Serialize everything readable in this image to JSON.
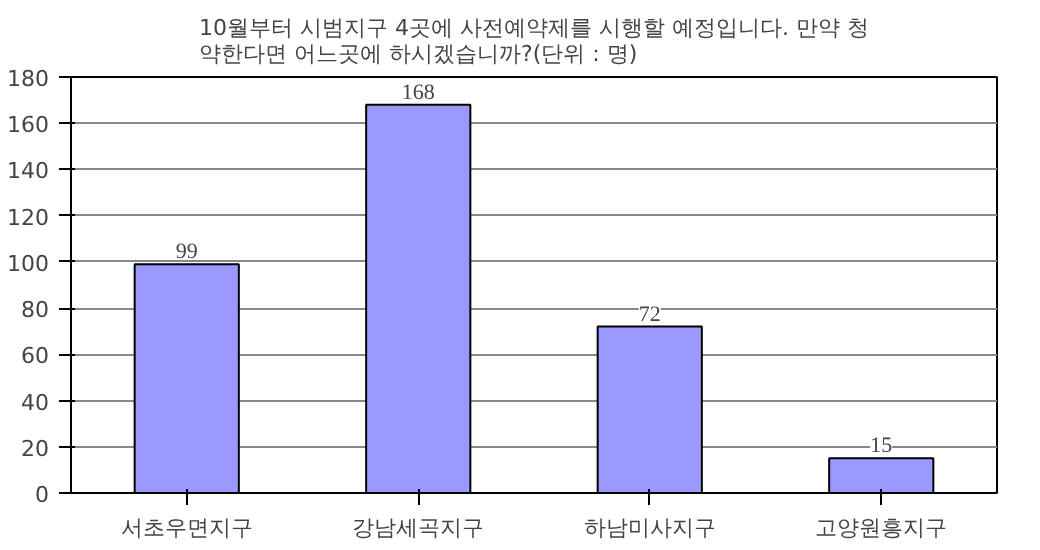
{
  "chart_data": {
    "type": "bar",
    "title": "10월부터 시범지구 4곳에 사전예약제를 시행할 예정입니다. 만약 청\n약한다면 어느곳에 하시겠습니까?(단위 : 명)",
    "categories": [
      "서초우면지구",
      "강남세곡지구",
      "하남미사지구",
      "고양원흥지구"
    ],
    "values": [
      99,
      168,
      72,
      15
    ],
    "color": "#9999ff",
    "data_labels": true,
    "ylim": [
      0,
      180
    ],
    "yticks": [
      0,
      20,
      40,
      60,
      80,
      100,
      120,
      140,
      160,
      180
    ],
    "grid": "y"
  }
}
